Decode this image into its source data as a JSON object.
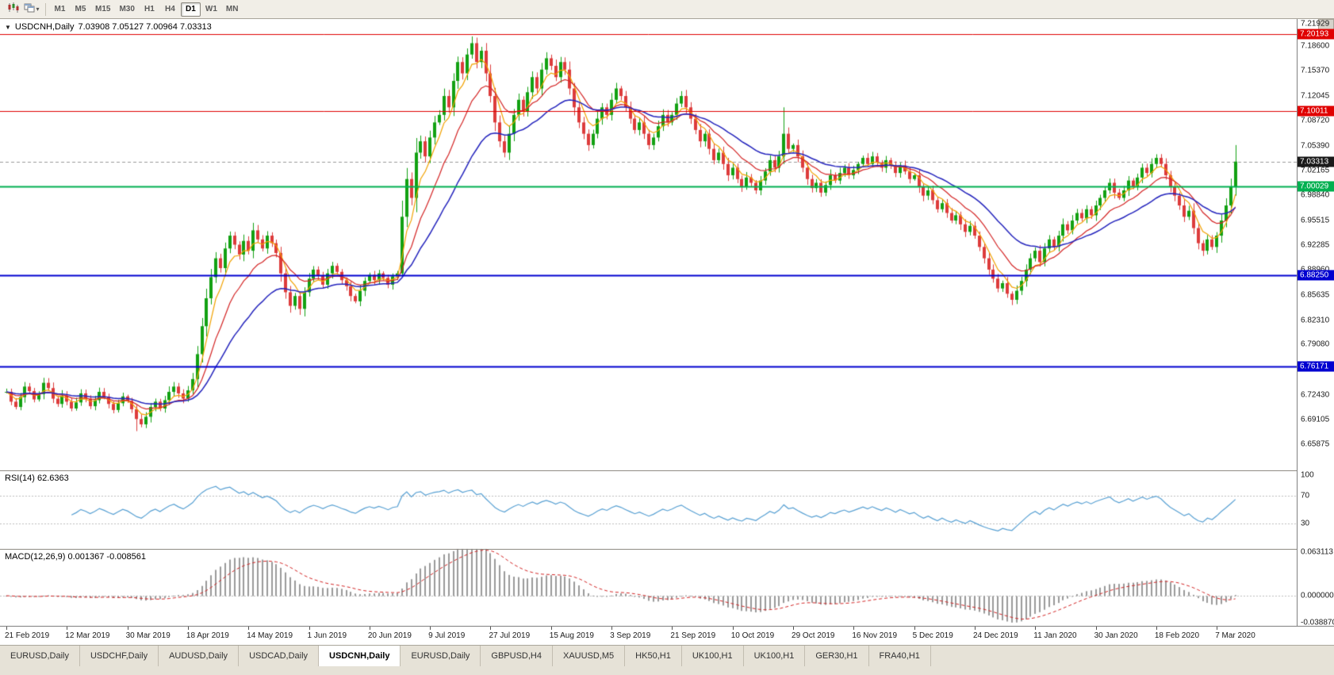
{
  "toolbar": {
    "timeframes": [
      "M1",
      "M5",
      "M15",
      "M30",
      "H1",
      "H4",
      "D1",
      "W1",
      "MN"
    ],
    "active": "D1"
  },
  "chart": {
    "symbol_title": "USDCNH,Daily",
    "ohlc_text": "7.03908 7.05127 7.00964 7.03313",
    "price_ticks": [
      "7.21929",
      "7.18600",
      "7.15370",
      "7.12045",
      "7.08720",
      "7.05390",
      "7.02165",
      "6.98840",
      "6.95515",
      "6.92285",
      "6.88960",
      "6.85635",
      "6.82310",
      "6.79080",
      "6.75755",
      "6.72430",
      "6.69105",
      "6.65875"
    ],
    "hlines": [
      {
        "price": 7.20193,
        "label": "7.20193",
        "color": "#e00000",
        "width": 1
      },
      {
        "price": 7.10011,
        "label": "7.10011",
        "color": "#e00000",
        "width": 1
      },
      {
        "price": 7.00029,
        "label": "7.00029",
        "color": "#00b050",
        "width": 2
      },
      {
        "price": 6.8825,
        "label": "6.88250",
        "color": "#0000d0",
        "width": 2
      },
      {
        "price": 6.76171,
        "label": "6.76171",
        "color": "#0000d0",
        "width": 2
      }
    ],
    "current_price": {
      "value": 7.03313,
      "label": "7.03313"
    }
  },
  "rsi": {
    "label": "RSI(14) 62.6363",
    "period": 14,
    "value": 62.6363,
    "levels": [
      {
        "value": 100,
        "label": "100"
      },
      {
        "value": 70,
        "label": "70"
      },
      {
        "value": 30,
        "label": "30"
      }
    ]
  },
  "macd": {
    "label": "MACD(12,26,9) 0.001367 -0.008561",
    "params": "12,26,9",
    "main_value": 0.001367,
    "signal_value": -0.008561,
    "axis": [
      {
        "value": 0.0631,
        "label": "0.063113"
      },
      {
        "value": 0,
        "label": "0.000000"
      },
      {
        "value": -0.0389,
        "label": "-0.038870"
      }
    ]
  },
  "dates": [
    "21 Feb 2019",
    "12 Mar 2019",
    "30 Mar 2019",
    "18 Apr 2019",
    "14 May 2019",
    "1 Jun 2019",
    "20 Jun 2019",
    "9 Jul 2019",
    "27 Jul 2019",
    "15 Aug 2019",
    "3 Sep 2019",
    "21 Sep 2019",
    "10 Oct 2019",
    "29 Oct 2019",
    "16 Nov 2019",
    "5 Dec 2019",
    "24 Dec 2019",
    "11 Jan 2020",
    "30 Jan 2020",
    "18 Feb 2020",
    "7 Mar 2020"
  ],
  "tabs": {
    "items": [
      "EURUSD,Daily",
      "USDCHF,Daily",
      "AUDUSD,Daily",
      "USDCAD,Daily",
      "USDCNH,Daily",
      "EURUSD,Daily",
      "GBPUSD,H4",
      "XAUUSD,M5",
      "HK50,H1",
      "UK100,H1",
      "UK100,H1",
      "GER30,H1",
      "FRA40,H1"
    ],
    "active_index": 4
  },
  "chart_data": {
    "type": "candlestick",
    "title": "USDCNH,Daily",
    "ylim": [
      6.624,
      7.222
    ],
    "macd_ylim": [
      -0.0389,
      0.0631
    ],
    "x_label_every": 13,
    "ma_periods": {
      "fast": 5,
      "mid": 12,
      "slow": 26
    },
    "indicators": [
      "RSI(14)",
      "MACD(12,26,9)"
    ],
    "closes": [
      6.728,
      6.715,
      6.708,
      6.721,
      6.735,
      6.729,
      6.718,
      6.725,
      6.74,
      6.733,
      6.719,
      6.712,
      6.723,
      6.715,
      6.706,
      6.714,
      6.726,
      6.719,
      6.709,
      6.717,
      6.728,
      6.721,
      6.712,
      6.704,
      6.713,
      6.722,
      6.716,
      6.705,
      6.692,
      6.685,
      6.695,
      6.708,
      6.715,
      6.706,
      6.717,
      6.728,
      6.735,
      6.726,
      6.719,
      6.73,
      6.745,
      6.778,
      6.815,
      6.852,
      6.88,
      6.905,
      6.892,
      6.918,
      6.935,
      6.923,
      6.91,
      6.928,
      6.915,
      6.942,
      6.93,
      6.918,
      6.935,
      6.925,
      6.912,
      6.885,
      6.86,
      6.842,
      6.855,
      6.838,
      6.86,
      6.878,
      6.89,
      6.882,
      6.87,
      6.885,
      6.895,
      6.887,
      6.876,
      6.868,
      6.855,
      6.848,
      6.862,
      6.875,
      6.883,
      6.876,
      6.885,
      6.879,
      6.87,
      6.881,
      6.885,
      6.96,
      7.01,
      6.985,
      7.045,
      7.06,
      7.04,
      7.065,
      7.085,
      7.095,
      7.12,
      7.105,
      7.14,
      7.165,
      7.15,
      7.175,
      7.19,
      7.165,
      7.18,
      7.15,
      7.12,
      7.085,
      7.06,
      7.045,
      7.07,
      7.095,
      7.115,
      7.1,
      7.125,
      7.145,
      7.13,
      7.155,
      7.17,
      7.16,
      7.145,
      7.165,
      7.155,
      7.13,
      7.105,
      7.085,
      7.07,
      7.055,
      7.07,
      7.09,
      7.105,
      7.095,
      7.115,
      7.13,
      7.12,
      7.105,
      7.09,
      7.075,
      7.085,
      7.07,
      7.055,
      7.065,
      7.08,
      7.095,
      7.085,
      7.095,
      7.11,
      7.12,
      7.105,
      7.09,
      7.075,
      7.06,
      7.07,
      7.05,
      7.035,
      7.045,
      7.03,
      7.015,
      7.025,
      7.01,
      7.0,
      7.012,
      7.005,
      6.995,
      7.008,
      7.02,
      7.035,
      7.025,
      7.04,
      7.07,
      7.05,
      7.055,
      7.04,
      7.025,
      7.01,
      6.998,
      7.005,
      6.992,
      7.002,
      7.015,
      7.008,
      7.018,
      7.025,
      7.015,
      7.022,
      7.03,
      7.038,
      7.03,
      7.04,
      7.032,
      7.025,
      7.035,
      7.028,
      7.018,
      7.028,
      7.02,
      7.01,
      7.015,
      7.0,
      6.988,
      6.995,
      6.982,
      6.97,
      6.978,
      6.965,
      6.955,
      6.962,
      6.95,
      6.94,
      6.948,
      6.935,
      6.92,
      6.905,
      6.89,
      6.878,
      6.865,
      6.872,
      6.858,
      6.85,
      6.862,
      6.875,
      6.89,
      6.905,
      6.915,
      6.9,
      6.918,
      6.93,
      6.92,
      6.935,
      6.95,
      6.942,
      6.955,
      6.965,
      6.958,
      6.97,
      6.962,
      6.975,
      6.985,
      6.995,
      7.005,
      6.992,
      6.985,
      6.995,
      7.008,
      7.0,
      7.012,
      7.025,
      7.018,
      7.03,
      7.038,
      7.03,
      7.015,
      7.0,
      6.988,
      6.975,
      6.96,
      6.968,
      6.945,
      6.925,
      6.915,
      6.93,
      6.92,
      6.935,
      6.955,
      6.975,
      7.0,
      7.0331
    ],
    "spikes": [
      {
        "i": 28,
        "l": 6.676
      },
      {
        "i": 53,
        "h": 6.952
      },
      {
        "i": 85,
        "l": 6.882
      },
      {
        "i": 100,
        "h": 7.199
      },
      {
        "i": 167,
        "h": 7.105
      },
      {
        "i": 216,
        "l": 6.843
      },
      {
        "i": 264,
        "h": 7.055
      }
    ],
    "colors": {
      "bull": "#12a112",
      "bear": "#dd3b3b",
      "ma_fast": "#f2a200",
      "ma_mid": "#d42424",
      "ma_slow": "#2424bd",
      "rsi": "#57a0d3",
      "macd_hist": "#9a9a9a",
      "macd_signal": "#d42424",
      "current_price_line": "#999999"
    }
  }
}
